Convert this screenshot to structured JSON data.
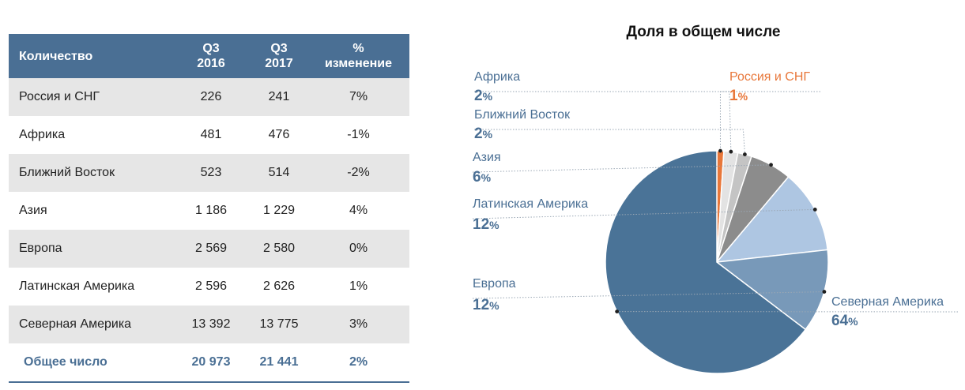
{
  "table": {
    "headers": {
      "col1": "Количество",
      "col2_line1": "Q3",
      "col2_line2": "2016",
      "col3_line1": "Q3",
      "col3_line2": "2017",
      "col4_line1": "%",
      "col4_line2": "изменение"
    },
    "rows": [
      {
        "region": "Россия и СНГ",
        "q3_2016": "226",
        "q3_2017": "241",
        "change": "7%"
      },
      {
        "region": "Африка",
        "q3_2016": "481",
        "q3_2017": "476",
        "change": "-1%"
      },
      {
        "region": "Ближний Восток",
        "q3_2016": "523",
        "q3_2017": "514",
        "change": "-2%"
      },
      {
        "region": "Азия",
        "q3_2016": "1 186",
        "q3_2017": "1 229",
        "change": "4%"
      },
      {
        "region": "Европа",
        "q3_2016": "2 569",
        "q3_2017": "2 580",
        "change": "0%"
      },
      {
        "region": "Латинская Америка",
        "q3_2016": "2 596",
        "q3_2017": "2 626",
        "change": "1%"
      },
      {
        "region": "Северная Америка",
        "q3_2016": "13 392",
        "q3_2017": "13 775",
        "change": "3%"
      }
    ],
    "total": {
      "region": "Общее число",
      "q3_2016": "20 973",
      "q3_2017": "21 441",
      "change": "2%"
    }
  },
  "colors": {
    "header_bg": "#4a6f94",
    "label_text": "#4a6f94",
    "highlight": "#e8773a"
  },
  "chart_data": {
    "type": "pie",
    "title": "Доля в общем числе",
    "unit": "%",
    "slices": [
      {
        "name": "Россия и СНГ",
        "value": 1,
        "color": "#e8773a",
        "label_color": "#e8773a"
      },
      {
        "name": "Африка",
        "value": 2,
        "color": "#e3e3e3",
        "label_color": "#4a6f94"
      },
      {
        "name": "Ближний Восток",
        "value": 2,
        "color": "#c4c4c4",
        "label_color": "#4a6f94"
      },
      {
        "name": "Азия",
        "value": 6,
        "color": "#8c8c8c",
        "label_color": "#4a6f94"
      },
      {
        "name": "Латинская Америка",
        "value": 12,
        "color": "#aec6e2",
        "label_color": "#4a6f94"
      },
      {
        "name": "Европа",
        "value": 12,
        "color": "#7899b9",
        "label_color": "#4a6f94"
      },
      {
        "name": "Северная Америка",
        "value": 64,
        "color": "#4a7397",
        "label_color": "#4a6f94"
      }
    ]
  }
}
